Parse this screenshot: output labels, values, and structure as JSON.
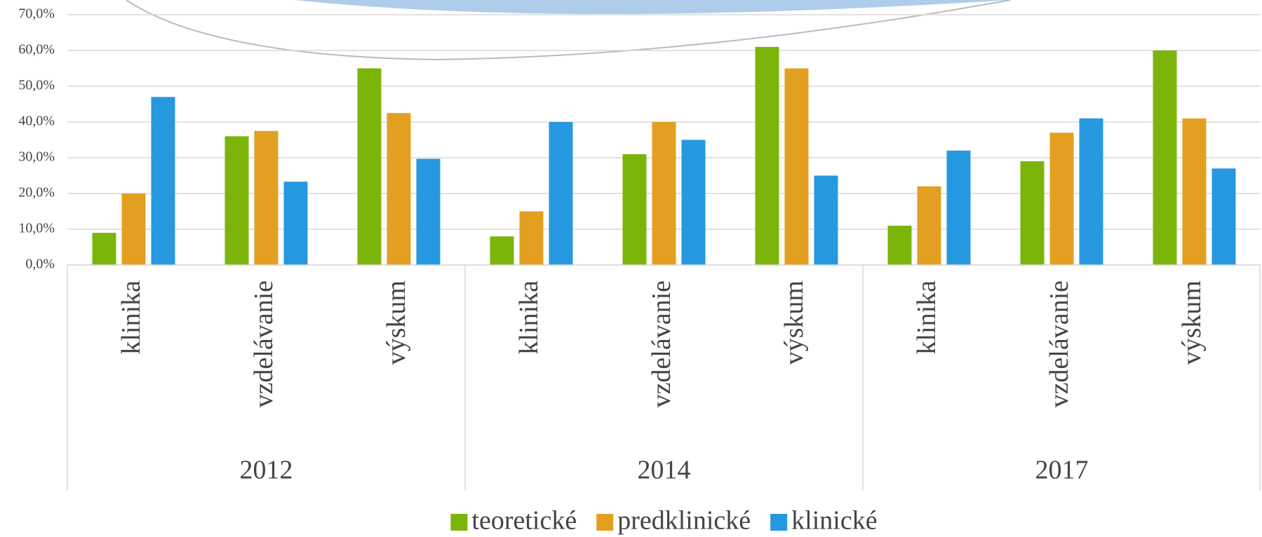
{
  "chart_data": {
    "type": "bar",
    "categories": [
      "klinika",
      "vzdelávanie",
      "výskum",
      "klinika",
      "vzdelávanie",
      "výskum",
      "klinika",
      "vzdelávanie",
      "výskum"
    ],
    "groups": [
      "2012",
      "2014",
      "2017"
    ],
    "series": [
      {
        "name": "teoretické",
        "color": "#7cb50a",
        "values": [
          9,
          36,
          55,
          8,
          31,
          61,
          11,
          29,
          60
        ]
      },
      {
        "name": "predklinické",
        "color": "#e3a020",
        "values": [
          20,
          37.5,
          42.5,
          15,
          40,
          55,
          22,
          37,
          41
        ]
      },
      {
        "name": "klinické",
        "color": "#2698e0",
        "values": [
          47,
          23.3,
          29.7,
          40,
          35,
          25,
          32,
          41,
          27
        ]
      }
    ],
    "ylim": [
      0,
      70
    ],
    "yticks": [
      {
        "value": 0,
        "label": "0,0%"
      },
      {
        "value": 10,
        "label": "10,0%"
      },
      {
        "value": 20,
        "label": "20,0%"
      },
      {
        "value": 30,
        "label": "30,0%"
      },
      {
        "value": 40,
        "label": "40,0%"
      },
      {
        "value": 50,
        "label": "50,0%"
      },
      {
        "value": 60,
        "label": "60,0%"
      },
      {
        "value": 70,
        "label": "70,0%"
      }
    ],
    "grid": true,
    "legend": "bottom"
  }
}
